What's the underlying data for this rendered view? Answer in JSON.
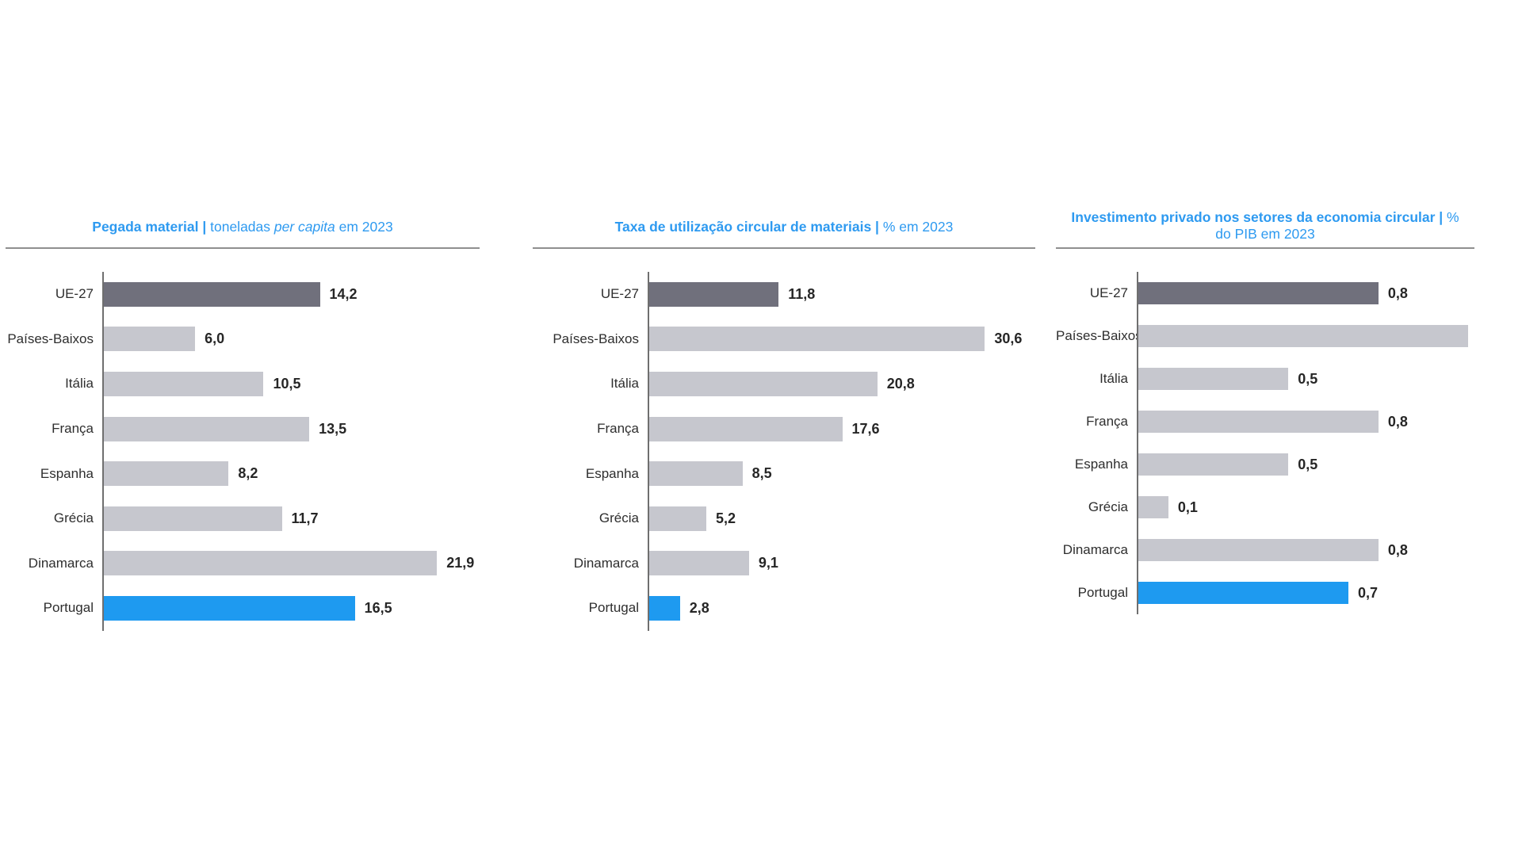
{
  "page": {
    "background": "#ffffff"
  },
  "colors": {
    "eu_bar": "#70707c",
    "default_bar": "#c6c7ce",
    "portugal_bar": "#1e9af0",
    "title_text": "#2e9af0",
    "country_label_text": "#2e2e2e",
    "value_label_text": "#262626",
    "axis_line": "#6f6f6f",
    "header_rule": "#8f8f8f"
  },
  "chart_data": [
    {
      "id": "pegada-material",
      "type": "bar",
      "orientation": "horizontal",
      "title_plain": "Pegada material | toneladas per capita em 2023",
      "title_segments": [
        {
          "text": "Pegada material | ",
          "style": "bold"
        },
        {
          "text": "toneladas ",
          "style": "normal"
        },
        {
          "text": "per capita",
          "style": "italic"
        },
        {
          "text": " em 2023",
          "style": "normal"
        }
      ],
      "categories": [
        "UE-27",
        "Países-Baixos",
        "Itália",
        "França",
        "Espanha",
        "Grécia",
        "Dinamarca",
        "Portugal"
      ],
      "values": [
        14.2,
        6.0,
        10.5,
        13.5,
        8.2,
        11.7,
        21.9,
        16.5
      ],
      "value_labels": [
        "14,2",
        "6,0",
        "10,5",
        "13,5",
        "8,2",
        "11,7",
        "21,9",
        "16,5"
      ],
      "xmax": 24.7,
      "highlight": {
        "eu_row": 0,
        "portugal_row": 7
      },
      "grid": false,
      "legend": null
    },
    {
      "id": "taxa-utilizacao-circular",
      "type": "bar",
      "orientation": "horizontal",
      "title_plain": "Taxa de utilização circular de materiais | % em 2023",
      "title_segments": [
        {
          "text": "Taxa de utilização circular de materiais | ",
          "style": "bold"
        },
        {
          "text": "% em 2023",
          "style": "normal"
        }
      ],
      "categories": [
        "UE-27",
        "Países-Baixos",
        "Itália",
        "França",
        "Espanha",
        "Grécia",
        "Dinamarca",
        "Portugal"
      ],
      "values": [
        11.8,
        30.6,
        20.8,
        17.6,
        8.5,
        5.2,
        9.1,
        2.8
      ],
      "value_labels": [
        "11,8",
        "30,6",
        "20,8",
        "17,6",
        "8,5",
        "5,2",
        "9,1",
        "2,8"
      ],
      "xmax": 35.2,
      "highlight": {
        "eu_row": 0,
        "portugal_row": 7
      },
      "grid": false,
      "legend": null
    },
    {
      "id": "investimento-privado-economia-circular",
      "type": "bar",
      "orientation": "horizontal",
      "title_plain": "Investimento privado nos setores da economia circular | % do PIB em 2023",
      "title_segments": [
        {
          "text": "Investimento privado nos setores da economia circular | ",
          "style": "bold"
        },
        {
          "text": "%",
          "style": "normal"
        },
        {
          "break": true
        },
        {
          "text": "do PIB em 2023",
          "style": "normal"
        }
      ],
      "categories": [
        "UE-27",
        "Países-Baixos",
        "Itália",
        "França",
        "Espanha",
        "Grécia",
        "Dinamarca",
        "Portugal"
      ],
      "values": [
        0.8,
        1.1,
        0.5,
        0.8,
        0.5,
        0.1,
        0.8,
        0.7
      ],
      "value_labels": [
        "0,8",
        "",
        "0,5",
        "0,8",
        "0,5",
        "0,1",
        "0,8",
        "0,7"
      ],
      "xmax": 1.12,
      "highlight": {
        "eu_row": 0,
        "portugal_row": 7
      },
      "grid": false,
      "legend": null,
      "note": "Países-Baixos bar extends past the plot area; its value label is not shown in the image (bar length ≈ 1.1 estimated from pixels)"
    }
  ]
}
